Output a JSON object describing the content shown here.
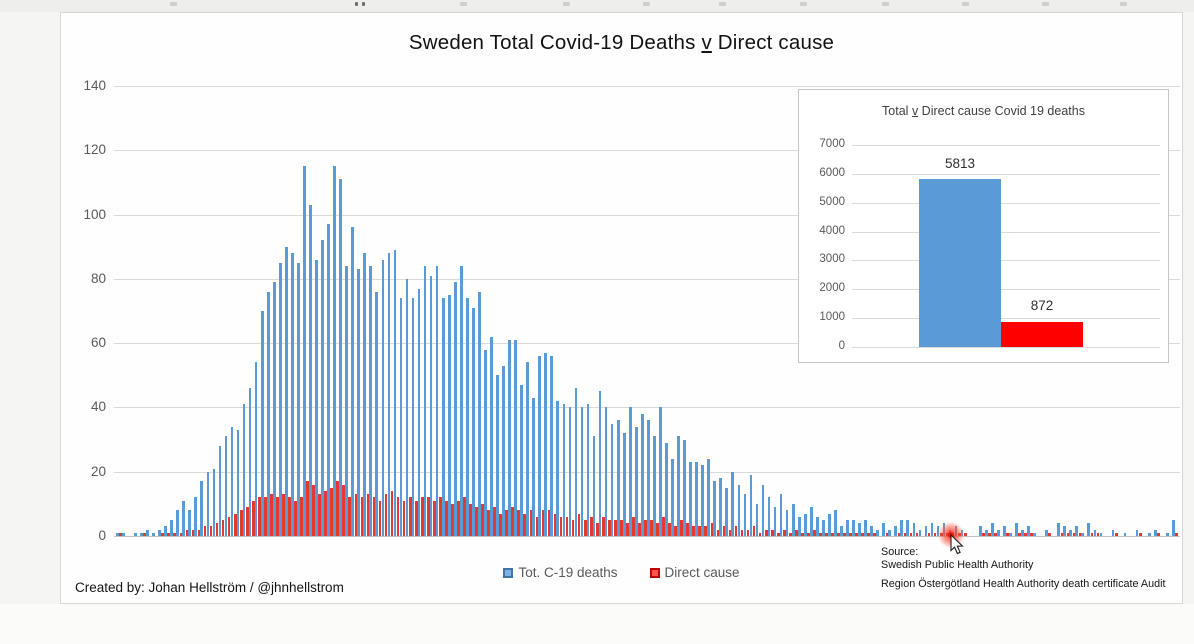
{
  "main_chart": {
    "title": {
      "prefix": "Sweden Total Covid-19 Deaths ",
      "v": "v",
      "suffix": " Direct cause"
    }
  },
  "inset_chart": {
    "title": {
      "prefix": "Total ",
      "v": "v",
      "suffix": " Direct cause Covid 19 deaths"
    }
  },
  "footer": {
    "created_by": "Created by: Johan Hellström / @jhnhellstrom",
    "source_heading": "Source:",
    "source_line_1": "Swedish Public Health Authority",
    "source_line_2": "Region Östergötland Health Authority death certificate Audit"
  },
  "cursor": {
    "type": "arrow-pointer",
    "highlight": "red-glow-on-hovered-data-point"
  },
  "colors": {
    "total_series": "#5b9bd5",
    "direct_series": "#e23a30",
    "inset_total": "#5b9bd5",
    "inset_direct": "#fe0000",
    "gridline": "#d9d9d9",
    "axis_text": "#595959"
  },
  "chart_data": [
    {
      "type": "bar",
      "title": "Sweden Total Covid-19 Deaths v Direct cause",
      "xlabel": "",
      "ylabel": "",
      "ylim": [
        0,
        140
      ],
      "y_ticks": [
        0,
        20,
        40,
        60,
        80,
        100,
        120,
        140
      ],
      "x_tick_labels_visible": false,
      "grid": true,
      "legend_position": "bottom",
      "series": [
        {
          "name": "Tot. C-19 deaths",
          "color": "#5b9bd5",
          "values": [
            1,
            1,
            0,
            1,
            1,
            2,
            1,
            2,
            3,
            5,
            8,
            11,
            8,
            12,
            17,
            20,
            21,
            28,
            31,
            34,
            33,
            41,
            46,
            54,
            70,
            76,
            79,
            85,
            90,
            88,
            85,
            115,
            103,
            86,
            92,
            97,
            115,
            111,
            84,
            96,
            83,
            88,
            84,
            76,
            86,
            88,
            89,
            74,
            80,
            74,
            77,
            84,
            81,
            84,
            74,
            75,
            79,
            84,
            74,
            71,
            76,
            58,
            62,
            50,
            53,
            61,
            61,
            47,
            54,
            43,
            56,
            57,
            56,
            42,
            41,
            40,
            46,
            40,
            41,
            31,
            45,
            40,
            35,
            36,
            32,
            40,
            34,
            38,
            36,
            31,
            40,
            29,
            24,
            31,
            30,
            23,
            23,
            22,
            24,
            17,
            18,
            15,
            20,
            16,
            13,
            19,
            10,
            16,
            12,
            9,
            13,
            8,
            10,
            6,
            7,
            9,
            6,
            5,
            7,
            8,
            3,
            5,
            5,
            4,
            5,
            3,
            2,
            4,
            2,
            3,
            5,
            5,
            4,
            2,
            3,
            4,
            3,
            4,
            2,
            3,
            2,
            0,
            0,
            3,
            2,
            4,
            2,
            3,
            1,
            4,
            2,
            3,
            1,
            0,
            2,
            0,
            4,
            3,
            2,
            3,
            1,
            4,
            2,
            1,
            0,
            2,
            0,
            1,
            0,
            2,
            0,
            1,
            2,
            0,
            1,
            5
          ]
        },
        {
          "name": "Direct cause",
          "color": "#e23a30",
          "values": [
            1,
            0,
            0,
            0,
            1,
            0,
            0,
            1,
            1,
            1,
            1,
            2,
            2,
            2,
            3,
            3,
            4,
            5,
            6,
            7,
            8,
            9,
            11,
            12,
            12,
            13,
            12,
            13,
            12,
            11,
            12,
            17,
            16,
            13,
            14,
            15,
            17,
            16,
            12,
            13,
            12,
            13,
            12,
            11,
            13,
            14,
            12,
            11,
            12,
            11,
            12,
            12,
            11,
            12,
            11,
            10,
            11,
            12,
            10,
            9,
            10,
            8,
            9,
            7,
            8,
            9,
            8,
            7,
            8,
            6,
            8,
            8,
            7,
            6,
            6,
            5,
            7,
            5,
            6,
            4,
            6,
            5,
            5,
            5,
            4,
            6,
            4,
            5,
            5,
            4,
            6,
            4,
            3,
            5,
            4,
            3,
            3,
            3,
            4,
            2,
            3,
            2,
            3,
            2,
            2,
            3,
            1,
            2,
            2,
            1,
            2,
            1,
            2,
            1,
            1,
            2,
            1,
            1,
            1,
            1,
            1,
            1,
            1,
            1,
            1,
            1,
            0,
            1,
            0,
            1,
            1,
            1,
            1,
            0,
            1,
            1,
            1,
            1,
            0,
            1,
            1,
            0,
            0,
            1,
            1,
            1,
            0,
            1,
            0,
            1,
            1,
            1,
            0,
            0,
            1,
            0,
            1,
            1,
            1,
            1,
            0,
            1,
            1,
            0,
            0,
            1,
            0,
            0,
            0,
            1,
            0,
            0,
            1,
            0,
            0,
            1
          ]
        }
      ]
    },
    {
      "type": "bar",
      "title": "Total v Direct cause Covid 19 deaths",
      "categories": [
        "Tot. C-19 deaths",
        "Direct cause"
      ],
      "values": [
        5813,
        872
      ],
      "colors": [
        "#5b9bd5",
        "#fe0000"
      ],
      "ylim": [
        0,
        7000
      ],
      "y_ticks": [
        0,
        1000,
        2000,
        3000,
        4000,
        5000,
        6000,
        7000
      ],
      "data_labels": [
        "5813",
        "872"
      ],
      "grid": true,
      "legend_position": "none"
    }
  ]
}
